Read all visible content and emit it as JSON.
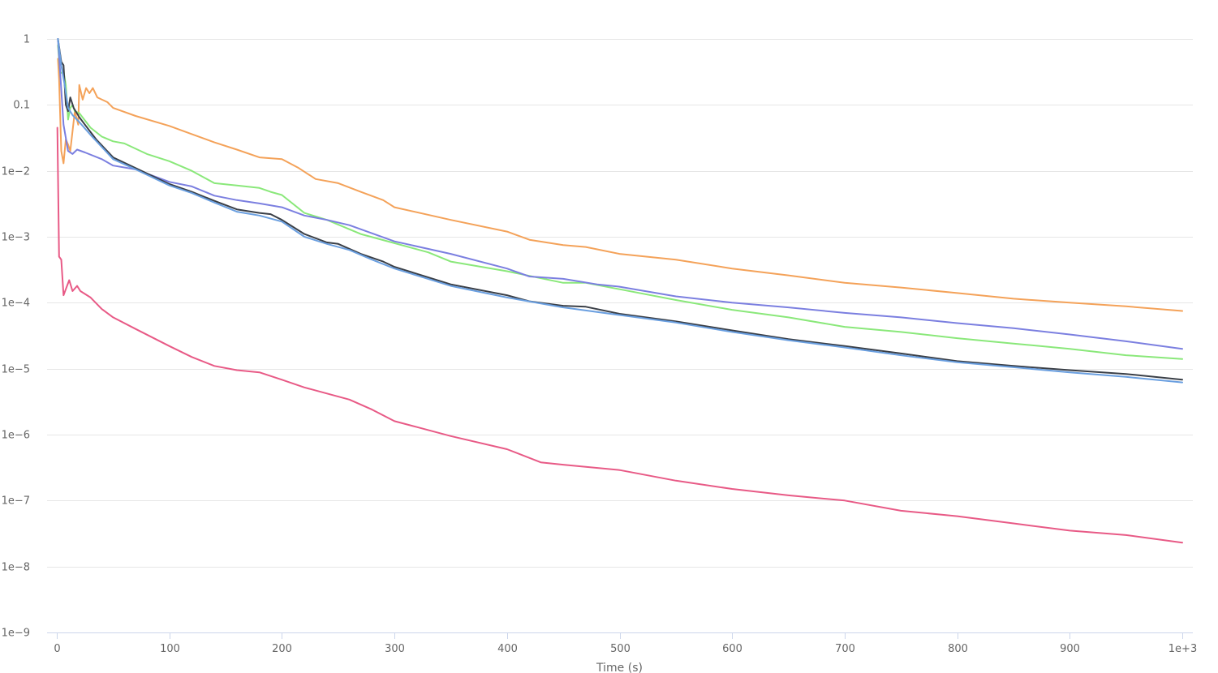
{
  "chart_data": {
    "type": "line",
    "title": "",
    "xlabel": "Time (s)",
    "ylabel": "",
    "y_scale": "log",
    "xlim": [
      0,
      1000
    ],
    "ylim": [
      1e-09,
      1
    ],
    "grid": true,
    "legend": "none",
    "x_ticks": [
      {
        "value": 0,
        "label": "0"
      },
      {
        "value": 100,
        "label": "100"
      },
      {
        "value": 200,
        "label": "200"
      },
      {
        "value": 300,
        "label": "300"
      },
      {
        "value": 400,
        "label": "400"
      },
      {
        "value": 500,
        "label": "500"
      },
      {
        "value": 600,
        "label": "600"
      },
      {
        "value": 700,
        "label": "700"
      },
      {
        "value": 800,
        "label": "800"
      },
      {
        "value": 900,
        "label": "900"
      },
      {
        "value": 1000,
        "label": "1e+3"
      }
    ],
    "y_ticks": [
      {
        "value": 1,
        "label": "1"
      },
      {
        "value": 0.1,
        "label": "0.1"
      },
      {
        "value": 0.01,
        "label": "1e−2"
      },
      {
        "value": 0.001,
        "label": "1e−3"
      },
      {
        "value": 0.0001,
        "label": "1e−4"
      },
      {
        "value": 1e-05,
        "label": "1e−5"
      },
      {
        "value": 1e-06,
        "label": "1e−6"
      },
      {
        "value": 1e-07,
        "label": "1e−7"
      },
      {
        "value": 1e-08,
        "label": "1e−8"
      },
      {
        "value": 1e-09,
        "label": "1e−9"
      }
    ],
    "colors": {
      "grid": "#e6e6e6",
      "axis": "#ccd6eb",
      "text": "#666666"
    },
    "series": [
      {
        "color": "#f4a259",
        "points": [
          [
            1,
            0.5
          ],
          [
            2,
            0.25
          ],
          [
            4,
            0.02
          ],
          [
            6,
            0.013
          ],
          [
            8,
            0.03
          ],
          [
            10,
            0.025
          ],
          [
            12,
            0.02
          ],
          [
            16,
            0.08
          ],
          [
            19,
            0.05
          ],
          [
            20,
            0.2
          ],
          [
            23,
            0.12
          ],
          [
            26,
            0.18
          ],
          [
            29,
            0.15
          ],
          [
            32,
            0.18
          ],
          [
            36,
            0.13
          ],
          [
            45,
            0.11
          ],
          [
            50,
            0.09
          ],
          [
            70,
            0.068
          ],
          [
            100,
            0.048
          ],
          [
            120,
            0.036
          ],
          [
            140,
            0.027
          ],
          [
            160,
            0.021
          ],
          [
            180,
            0.016
          ],
          [
            200,
            0.015
          ],
          [
            215,
            0.011
          ],
          [
            230,
            0.0075
          ],
          [
            250,
            0.0065
          ],
          [
            270,
            0.0048
          ],
          [
            290,
            0.0036
          ],
          [
            300,
            0.0028
          ],
          [
            350,
            0.0018
          ],
          [
            400,
            0.0012
          ],
          [
            420,
            0.0009
          ],
          [
            450,
            0.00075
          ],
          [
            470,
            0.0007
          ],
          [
            500,
            0.00055
          ],
          [
            550,
            0.00045
          ],
          [
            600,
            0.00033
          ],
          [
            650,
            0.00026
          ],
          [
            700,
            0.0002
          ],
          [
            750,
            0.00017
          ],
          [
            800,
            0.00014
          ],
          [
            850,
            0.000115
          ],
          [
            900,
            0.0001
          ],
          [
            950,
            8.8e-05
          ],
          [
            1000,
            7.5e-05
          ]
        ]
      },
      {
        "color": "#8ae87a",
        "points": [
          [
            1,
            0.8
          ],
          [
            3,
            0.3
          ],
          [
            6,
            0.32
          ],
          [
            8,
            0.2
          ],
          [
            10,
            0.06
          ],
          [
            12,
            0.09
          ],
          [
            14,
            0.1
          ],
          [
            16,
            0.08
          ],
          [
            20,
            0.075
          ],
          [
            30,
            0.045
          ],
          [
            40,
            0.033
          ],
          [
            50,
            0.028
          ],
          [
            60,
            0.026
          ],
          [
            80,
            0.018
          ],
          [
            100,
            0.014
          ],
          [
            120,
            0.01
          ],
          [
            140,
            0.0065
          ],
          [
            160,
            0.006
          ],
          [
            180,
            0.0055
          ],
          [
            190,
            0.0048
          ],
          [
            200,
            0.0043
          ],
          [
            220,
            0.0023
          ],
          [
            240,
            0.0018
          ],
          [
            270,
            0.0011
          ],
          [
            300,
            0.0008
          ],
          [
            330,
            0.00058
          ],
          [
            350,
            0.00042
          ],
          [
            400,
            0.0003
          ],
          [
            450,
            0.0002
          ],
          [
            470,
            0.0002
          ],
          [
            500,
            0.00016
          ],
          [
            550,
            0.00011
          ],
          [
            600,
            7.8e-05
          ],
          [
            650,
            6e-05
          ],
          [
            700,
            4.3e-05
          ],
          [
            750,
            3.6e-05
          ],
          [
            800,
            2.9e-05
          ],
          [
            850,
            2.4e-05
          ],
          [
            900,
            2e-05
          ],
          [
            950,
            1.6e-05
          ],
          [
            1000,
            1.4e-05
          ]
        ]
      },
      {
        "color": "#7b7fe0",
        "points": [
          [
            1,
            1.0
          ],
          [
            3,
            0.3
          ],
          [
            6,
            0.05
          ],
          [
            10,
            0.02
          ],
          [
            14,
            0.018
          ],
          [
            18,
            0.021
          ],
          [
            25,
            0.019
          ],
          [
            40,
            0.015
          ],
          [
            50,
            0.012
          ],
          [
            70,
            0.0105
          ],
          [
            100,
            0.0068
          ],
          [
            120,
            0.0058
          ],
          [
            140,
            0.0042
          ],
          [
            160,
            0.0036
          ],
          [
            180,
            0.0032
          ],
          [
            200,
            0.0028
          ],
          [
            220,
            0.0021
          ],
          [
            240,
            0.0018
          ],
          [
            260,
            0.0015
          ],
          [
            300,
            0.00085
          ],
          [
            350,
            0.00055
          ],
          [
            400,
            0.00033
          ],
          [
            420,
            0.00025
          ],
          [
            450,
            0.00023
          ],
          [
            480,
            0.00019
          ],
          [
            500,
            0.000175
          ],
          [
            550,
            0.000125
          ],
          [
            600,
            0.0001
          ],
          [
            650,
            8.5e-05
          ],
          [
            700,
            7e-05
          ],
          [
            750,
            6e-05
          ],
          [
            800,
            4.9e-05
          ],
          [
            850,
            4.1e-05
          ],
          [
            900,
            3.3e-05
          ],
          [
            950,
            2.6e-05
          ],
          [
            1000,
            2e-05
          ]
        ]
      },
      {
        "color": "#3a3f47",
        "points": [
          [
            1,
            1.0
          ],
          [
            4,
            0.45
          ],
          [
            6,
            0.4
          ],
          [
            8,
            0.1
          ],
          [
            10,
            0.08
          ],
          [
            12,
            0.13
          ],
          [
            15,
            0.09
          ],
          [
            20,
            0.065
          ],
          [
            25,
            0.05
          ],
          [
            35,
            0.03
          ],
          [
            50,
            0.016
          ],
          [
            70,
            0.011
          ],
          [
            100,
            0.0063
          ],
          [
            120,
            0.0048
          ],
          [
            140,
            0.0035
          ],
          [
            160,
            0.0026
          ],
          [
            180,
            0.0023
          ],
          [
            190,
            0.0022
          ],
          [
            200,
            0.0018
          ],
          [
            220,
            0.0011
          ],
          [
            240,
            0.00082
          ],
          [
            250,
            0.00078
          ],
          [
            270,
            0.00055
          ],
          [
            290,
            0.00042
          ],
          [
            300,
            0.00035
          ],
          [
            350,
            0.00019
          ],
          [
            400,
            0.00013
          ],
          [
            420,
            0.000105
          ],
          [
            450,
            9e-05
          ],
          [
            470,
            8.7e-05
          ],
          [
            500,
            6.8e-05
          ],
          [
            550,
            5.2e-05
          ],
          [
            600,
            3.8e-05
          ],
          [
            650,
            2.8e-05
          ],
          [
            700,
            2.2e-05
          ],
          [
            750,
            1.7e-05
          ],
          [
            800,
            1.3e-05
          ],
          [
            850,
            1.1e-05
          ],
          [
            900,
            9.5e-06
          ],
          [
            950,
            8.3e-06
          ],
          [
            1000,
            6.8e-06
          ]
        ]
      },
      {
        "color": "#6a9fe0",
        "points": [
          [
            1,
            1.0
          ],
          [
            4,
            0.4
          ],
          [
            7,
            0.2
          ],
          [
            10,
            0.09
          ],
          [
            14,
            0.07
          ],
          [
            20,
            0.055
          ],
          [
            30,
            0.035
          ],
          [
            50,
            0.015
          ],
          [
            70,
            0.0105
          ],
          [
            100,
            0.006
          ],
          [
            120,
            0.0046
          ],
          [
            140,
            0.0033
          ],
          [
            160,
            0.0024
          ],
          [
            180,
            0.0021
          ],
          [
            200,
            0.0017
          ],
          [
            220,
            0.001
          ],
          [
            240,
            0.00078
          ],
          [
            260,
            0.00063
          ],
          [
            280,
            0.00045
          ],
          [
            300,
            0.00033
          ],
          [
            350,
            0.00018
          ],
          [
            400,
            0.00012
          ],
          [
            450,
            8.5e-05
          ],
          [
            500,
            6.5e-05
          ],
          [
            550,
            5e-05
          ],
          [
            600,
            3.6e-05
          ],
          [
            650,
            2.7e-05
          ],
          [
            700,
            2.1e-05
          ],
          [
            750,
            1.6e-05
          ],
          [
            800,
            1.25e-05
          ],
          [
            850,
            1.05e-05
          ],
          [
            900,
            8.8e-06
          ],
          [
            950,
            7.5e-06
          ],
          [
            1000,
            6.2e-06
          ]
        ]
      },
      {
        "color": "#e85a86",
        "points": [
          [
            0.5,
            0.045
          ],
          [
            1,
            0.01
          ],
          [
            2,
            0.0005
          ],
          [
            4,
            0.00045
          ],
          [
            6,
            0.00013
          ],
          [
            8,
            0.00016
          ],
          [
            11,
            0.00022
          ],
          [
            14,
            0.00015
          ],
          [
            18,
            0.00018
          ],
          [
            21,
            0.00015
          ],
          [
            30,
            0.00012
          ],
          [
            40,
            8e-05
          ],
          [
            50,
            6e-05
          ],
          [
            70,
            4e-05
          ],
          [
            100,
            2.2e-05
          ],
          [
            120,
            1.5e-05
          ],
          [
            140,
            1.1e-05
          ],
          [
            160,
            9.5e-06
          ],
          [
            180,
            8.8e-06
          ],
          [
            200,
            6.8e-06
          ],
          [
            220,
            5.2e-06
          ],
          [
            240,
            4.2e-06
          ],
          [
            260,
            3.4e-06
          ],
          [
            280,
            2.4e-06
          ],
          [
            300,
            1.6e-06
          ],
          [
            320,
            1.3e-06
          ],
          [
            350,
            9.5e-07
          ],
          [
            400,
            6e-07
          ],
          [
            430,
            3.8e-07
          ],
          [
            450,
            3.5e-07
          ],
          [
            500,
            2.9e-07
          ],
          [
            550,
            2e-07
          ],
          [
            600,
            1.5e-07
          ],
          [
            650,
            1.2e-07
          ],
          [
            700,
            1e-07
          ],
          [
            750,
            7e-08
          ],
          [
            800,
            5.8e-08
          ],
          [
            850,
            4.5e-08
          ],
          [
            900,
            3.5e-08
          ],
          [
            950,
            3e-08
          ],
          [
            1000,
            2.3e-08
          ]
        ]
      }
    ]
  }
}
